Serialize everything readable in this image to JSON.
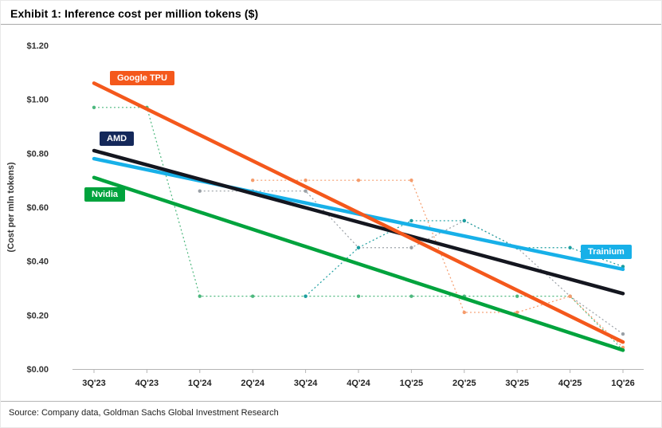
{
  "title": "Exhibit 1: Inference cost per million tokens ($)",
  "source": "Source: Company data, Goldman Sachs Global Investment Research",
  "chart_data": {
    "type": "line",
    "title": "Exhibit 1: Inference cost per million tokens ($)",
    "ylabel": "(Cost per mln tokens)",
    "ylim": [
      0,
      1.2
    ],
    "grid": false,
    "legend_position": "inline-labels-on-lines",
    "categories": [
      "3Q'23",
      "4Q'23",
      "1Q'24",
      "2Q'24",
      "3Q'24",
      "4Q'24",
      "1Q'25",
      "2Q'25",
      "3Q'25",
      "4Q'25",
      "1Q'26"
    ],
    "y_tick_values": [
      0.0,
      0.2,
      0.4,
      0.6,
      0.8,
      1.0,
      1.2
    ],
    "y_tick_labels": [
      "$0.00",
      "$0.20",
      "$0.40",
      "$0.60",
      "$0.80",
      "$1.00",
      "$1.20"
    ],
    "trend_series": [
      {
        "name": "Google TPU",
        "color": "#F4581C",
        "start": {
          "x": "3Q'23",
          "y": 1.06
        },
        "end": {
          "x": "1Q'26",
          "y": 0.1
        }
      },
      {
        "name": "AMD",
        "color": "#14161F",
        "label_bg": "#14285A",
        "start": {
          "x": "3Q'23",
          "y": 0.81
        },
        "end": {
          "x": "1Q'26",
          "y": 0.28
        }
      },
      {
        "name": "Trainium",
        "color": "#17B0E8",
        "start": {
          "x": "3Q'23",
          "y": 0.78
        },
        "end": {
          "x": "1Q'26",
          "y": 0.37
        }
      },
      {
        "name": "Nvidia",
        "color": "#00A33D",
        "start": {
          "x": "3Q'23",
          "y": 0.71
        },
        "end": {
          "x": "1Q'26",
          "y": 0.07
        }
      }
    ],
    "actual_series": [
      {
        "name": "Nvidia (quarterly)",
        "color": "#4DB87E",
        "values": [
          0.97,
          0.97,
          0.27,
          0.27,
          0.27,
          0.27,
          0.27,
          0.27,
          0.27,
          0.27,
          0.07
        ]
      },
      {
        "name": "AMD (quarterly)",
        "color": "#9AA0A6",
        "values": [
          null,
          null,
          0.66,
          0.66,
          0.66,
          0.45,
          0.45,
          0.55,
          0.45,
          0.27,
          0.13
        ]
      },
      {
        "name": "Google TPU (quarterly)",
        "color": "#F59B6B",
        "values": [
          null,
          null,
          null,
          0.7,
          0.7,
          0.7,
          0.7,
          0.21,
          0.21,
          0.27,
          0.08
        ]
      },
      {
        "name": "Trainium (quarterly)",
        "color": "#1B9EA0",
        "values": [
          null,
          null,
          null,
          null,
          0.27,
          0.45,
          0.55,
          0.55,
          0.45,
          0.45,
          0.38
        ]
      }
    ]
  }
}
